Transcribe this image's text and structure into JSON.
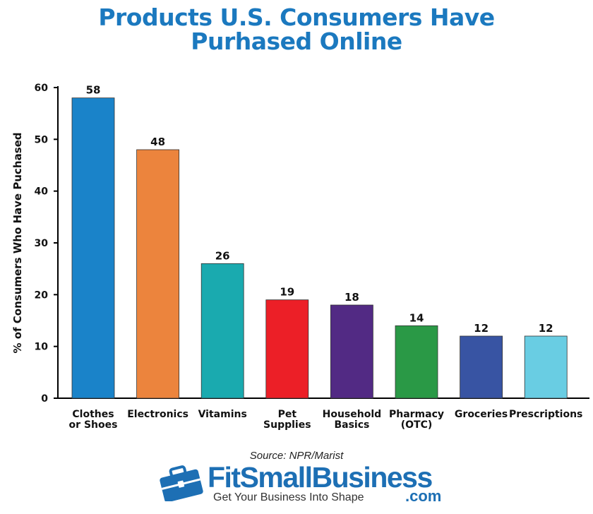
{
  "chart_data": {
    "type": "bar",
    "title": "Products U.S. Consumers Have Purhased Online",
    "title_lines": [
      "Products U.S. Consumers Have",
      "Purhased Online"
    ],
    "ylabel": "% of Consumers Who Have Puchased",
    "xlabel": "",
    "ylim": [
      0,
      60
    ],
    "yticks": [
      0,
      10,
      20,
      30,
      40,
      50,
      60
    ],
    "grid": false,
    "legend": "none",
    "categories": [
      [
        "Clothes",
        "or Shoes"
      ],
      [
        "Electronics"
      ],
      [
        "Vitamins"
      ],
      [
        "Pet",
        "Supplies"
      ],
      [
        "Household",
        "Basics"
      ],
      [
        "Pharmacy",
        "(OTC)"
      ],
      [
        "Groceries"
      ],
      [
        "Prescriptions"
      ]
    ],
    "values": [
      58,
      48,
      26,
      19,
      18,
      14,
      12,
      12
    ],
    "colors": [
      "#1a83c9",
      "#ec843d",
      "#1aaaaf",
      "#ec1f27",
      "#522a84",
      "#2a9946",
      "#3854a3",
      "#69cde3"
    ]
  },
  "source": "Source: NPR/Marist",
  "brand": {
    "name": "FitSmallBusiness",
    "domain": ".com",
    "tagline": "Get Your Business Into Shape",
    "color": "#1d6fb4"
  }
}
